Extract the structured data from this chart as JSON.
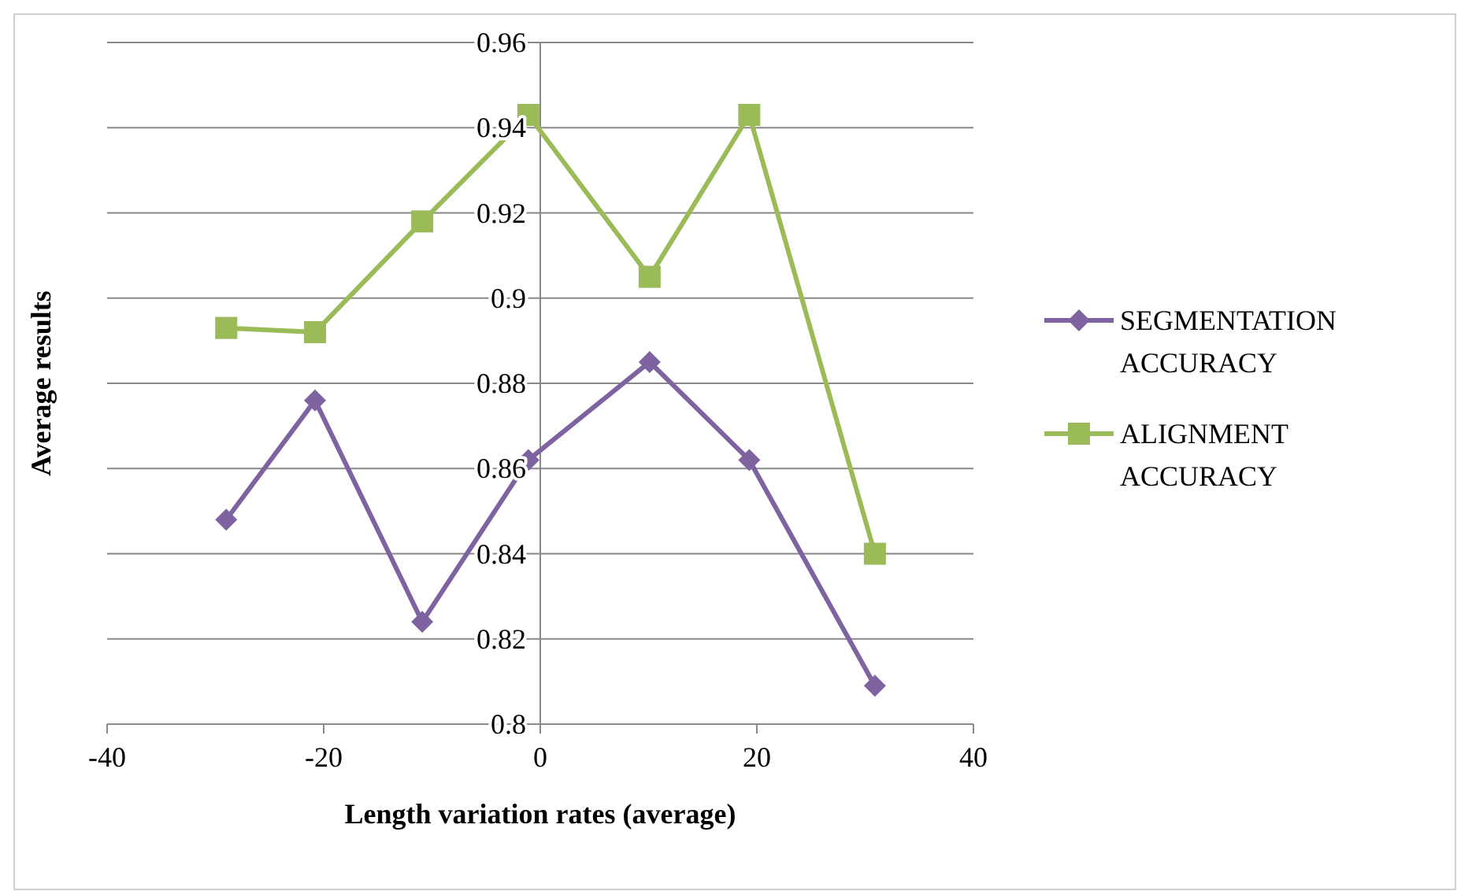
{
  "chart_data": {
    "type": "line",
    "xlabel": "Length variation rates (average)",
    "ylabel": "Average results",
    "xlim": [
      -40,
      40
    ],
    "xticks": [
      -40,
      -20,
      0,
      20,
      40
    ],
    "ylim": [
      0.8,
      0.96
    ],
    "yticks": [
      0.8,
      0.82,
      0.84,
      0.86,
      0.88,
      0.9,
      0.92,
      0.94,
      0.96
    ],
    "grid": "y",
    "legend": "right",
    "series": [
      {
        "name": "SEGMENTATION ACCURACY",
        "color": "#7f63a1",
        "marker": "diamond",
        "x": [
          -29,
          -20.8,
          -10.9,
          -1.1,
          10.1,
          19.3,
          30.9
        ],
        "values": [
          0.848,
          0.876,
          0.824,
          0.862,
          0.885,
          0.862,
          0.809
        ]
      },
      {
        "name": "ALIGNMENT ACCURACY",
        "color": "#9bbb59",
        "marker": "square",
        "x": [
          -29,
          -20.8,
          -10.9,
          -1.1,
          10.1,
          19.3,
          30.9
        ],
        "values": [
          0.893,
          0.892,
          0.918,
          0.943,
          0.905,
          0.943,
          0.84
        ]
      }
    ]
  }
}
